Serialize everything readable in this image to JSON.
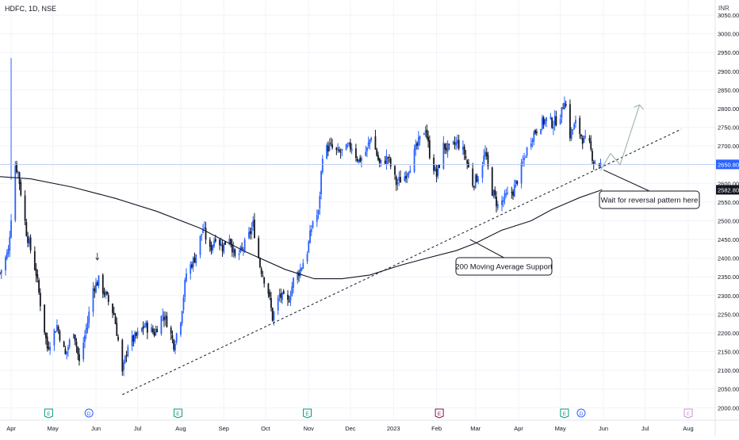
{
  "header": {
    "title": "HDFC, 1D, NSE",
    "currency": "INR"
  },
  "chart_data": {
    "type": "candlestick",
    "symbol": "HDFC",
    "interval": "1D",
    "exchange": "NSE",
    "currency": "INR",
    "ylim": [
      1990,
      3065
    ],
    "y_ticks": [
      2000,
      2050,
      2100,
      2150,
      2200,
      2250,
      2300,
      2350,
      2400,
      2450,
      2500,
      2550,
      2600,
      2650,
      2700,
      2750,
      2800,
      2850,
      2900,
      2950,
      3000,
      3050
    ],
    "y_tick_labels": [
      "2000.00",
      "2050.00",
      "2100.00",
      "2150.00",
      "2200.00",
      "2250.00",
      "2300.00",
      "2350.00",
      "2400.00",
      "2450.00",
      "2500.00",
      "2550.00",
      "2600.00",
      "2650.00",
      "2700.00",
      "2750.00",
      "2800.00",
      "2850.00",
      "2900.00",
      "2950.00",
      "3000.00",
      "3050.00"
    ],
    "x_labels": [
      {
        "label": "Apr",
        "date": "2022-04-01"
      },
      {
        "label": "May",
        "date": "2022-05-01"
      },
      {
        "label": "Jun",
        "date": "2022-06-01"
      },
      {
        "label": "Jul",
        "date": "2022-07-01"
      },
      {
        "label": "Aug",
        "date": "2022-08-01"
      },
      {
        "label": "Sep",
        "date": "2022-09-01"
      },
      {
        "label": "Oct",
        "date": "2022-10-01"
      },
      {
        "label": "Nov",
        "date": "2022-11-01"
      },
      {
        "label": "Dec",
        "date": "2022-12-01"
      },
      {
        "label": "2023",
        "date": "2023-01-01"
      },
      {
        "label": "Feb",
        "date": "2023-02-01"
      },
      {
        "label": "Mar",
        "date": "2023-03-01"
      },
      {
        "label": "Apr",
        "date": "2023-04-01"
      },
      {
        "label": "May",
        "date": "2023-05-01"
      },
      {
        "label": "Jun",
        "date": "2023-06-01"
      },
      {
        "label": "Jul",
        "date": "2023-07-01"
      },
      {
        "label": "Aug",
        "date": "2023-08-01"
      }
    ],
    "last_price": {
      "value": 2650.8,
      "label": "2650.80",
      "color": "#2962ff"
    },
    "moving_average": {
      "name": "200 Moving Average",
      "current_value": 2582.8,
      "label": "2582.80",
      "color": "#131722"
    },
    "price_path": [
      [
        "2022-03-24",
        2360
      ],
      [
        "2022-03-30",
        2420
      ],
      [
        "2022-04-04",
        2650
      ],
      [
        "2022-04-06",
        2630
      ],
      [
        "2022-04-12",
        2470
      ],
      [
        "2022-04-19",
        2360
      ],
      [
        "2022-04-22",
        2280
      ],
      [
        "2022-04-27",
        2160
      ],
      [
        "2022-05-04",
        2220
      ],
      [
        "2022-05-10",
        2140
      ],
      [
        "2022-05-16",
        2210
      ],
      [
        "2022-05-20",
        2120
      ],
      [
        "2022-05-26",
        2230
      ],
      [
        "2022-05-30",
        2320
      ],
      [
        "2022-06-03",
        2340
      ],
      [
        "2022-06-08",
        2300
      ],
      [
        "2022-06-14",
        2250
      ],
      [
        "2022-06-17",
        2180
      ],
      [
        "2022-06-20",
        2090
      ],
      [
        "2022-06-24",
        2170
      ],
      [
        "2022-06-30",
        2190
      ],
      [
        "2022-07-06",
        2220
      ],
      [
        "2022-07-13",
        2200
      ],
      [
        "2022-07-19",
        2250
      ],
      [
        "2022-07-22",
        2230
      ],
      [
        "2022-07-27",
        2170
      ],
      [
        "2022-08-01",
        2240
      ],
      [
        "2022-08-05",
        2360
      ],
      [
        "2022-08-11",
        2400
      ],
      [
        "2022-08-17",
        2480
      ],
      [
        "2022-08-22",
        2420
      ],
      [
        "2022-08-26",
        2460
      ],
      [
        "2022-08-31",
        2430
      ],
      [
        "2022-09-05",
        2460
      ],
      [
        "2022-09-09",
        2400
      ],
      [
        "2022-09-14",
        2420
      ],
      [
        "2022-09-19",
        2460
      ],
      [
        "2022-09-22",
        2490
      ],
      [
        "2022-09-27",
        2380
      ],
      [
        "2022-10-03",
        2310
      ],
      [
        "2022-10-06",
        2240
      ],
      [
        "2022-10-11",
        2300
      ],
      [
        "2022-10-17",
        2280
      ],
      [
        "2022-10-21",
        2340
      ],
      [
        "2022-10-26",
        2370
      ],
      [
        "2022-10-31",
        2420
      ],
      [
        "2022-11-04",
        2500
      ],
      [
        "2022-11-08",
        2520
      ],
      [
        "2022-11-11",
        2680
      ],
      [
        "2022-11-16",
        2700
      ],
      [
        "2022-11-22",
        2680
      ],
      [
        "2022-11-28",
        2690
      ],
      [
        "2022-12-02",
        2700
      ],
      [
        "2022-12-07",
        2660
      ],
      [
        "2022-12-13",
        2690
      ],
      [
        "2022-12-16",
        2730
      ],
      [
        "2022-12-22",
        2650
      ],
      [
        "2022-12-28",
        2670
      ],
      [
        "2023-01-03",
        2600
      ],
      [
        "2023-01-09",
        2620
      ],
      [
        "2023-01-13",
        2650
      ],
      [
        "2023-01-18",
        2700
      ],
      [
        "2023-01-24",
        2750
      ],
      [
        "2023-01-27",
        2680
      ],
      [
        "2023-02-01",
        2620
      ],
      [
        "2023-02-06",
        2700
      ],
      [
        "2023-02-10",
        2690
      ],
      [
        "2023-02-16",
        2710
      ],
      [
        "2023-02-21",
        2680
      ],
      [
        "2023-02-27",
        2600
      ],
      [
        "2023-03-03",
        2620
      ],
      [
        "2023-03-08",
        2680
      ],
      [
        "2023-03-13",
        2580
      ],
      [
        "2023-03-17",
        2540
      ],
      [
        "2023-03-22",
        2560
      ],
      [
        "2023-03-28",
        2580
      ],
      [
        "2023-04-03",
        2640
      ],
      [
        "2023-04-06",
        2680
      ],
      [
        "2023-04-11",
        2730
      ],
      [
        "2023-04-17",
        2760
      ],
      [
        "2023-04-21",
        2770
      ],
      [
        "2023-04-26",
        2760
      ],
      [
        "2023-05-02",
        2790
      ],
      [
        "2023-05-04",
        2830
      ],
      [
        "2023-05-08",
        2730
      ],
      [
        "2023-05-12",
        2760
      ],
      [
        "2023-05-17",
        2720
      ],
      [
        "2023-05-22",
        2700
      ],
      [
        "2023-05-25",
        2660
      ],
      [
        "2023-05-30",
        2650
      ]
    ],
    "ma_path": [
      [
        "2022-03-24",
        2618
      ],
      [
        "2022-04-15",
        2612
      ],
      [
        "2022-05-15",
        2590
      ],
      [
        "2022-06-15",
        2560
      ],
      [
        "2022-07-15",
        2525
      ],
      [
        "2022-08-15",
        2480
      ],
      [
        "2022-09-15",
        2420
      ],
      [
        "2022-10-15",
        2370
      ],
      [
        "2022-11-05",
        2345
      ],
      [
        "2022-11-25",
        2345
      ],
      [
        "2022-12-15",
        2355
      ],
      [
        "2023-01-05",
        2380
      ],
      [
        "2023-01-25",
        2400
      ],
      [
        "2023-02-15",
        2420
      ],
      [
        "2023-03-01",
        2440
      ],
      [
        "2023-03-20",
        2475
      ],
      [
        "2023-04-10",
        2500
      ],
      [
        "2023-04-25",
        2530
      ],
      [
        "2023-05-15",
        2562
      ],
      [
        "2023-05-31",
        2582.8
      ]
    ],
    "trendline": {
      "from": [
        "2022-06-20",
        2035
      ],
      "to": [
        "2023-07-27",
        2745
      ],
      "style": "dashed"
    },
    "projection": {
      "points": [
        [
          "2023-05-30",
          2635
        ],
        [
          "2023-06-06",
          2680
        ],
        [
          "2023-06-13",
          2650
        ],
        [
          "2023-06-27",
          2810
        ]
      ],
      "color": "#a5b8b0"
    },
    "spike": {
      "date": "2022-04-01",
      "high": 2935,
      "low": 2610
    },
    "down_marker": {
      "date": "2022-06-02",
      "value": 2395
    },
    "event_markers": [
      {
        "date": "2022-04-28",
        "letter": "E",
        "kind": "earnings",
        "color": "#089981"
      },
      {
        "date": "2022-05-27",
        "letter": "D",
        "kind": "dividend",
        "color": "#2962ff"
      },
      {
        "date": "2022-07-30",
        "letter": "E",
        "kind": "earnings",
        "color": "#089981"
      },
      {
        "date": "2022-10-31",
        "letter": "E",
        "kind": "earnings",
        "color": "#089981"
      },
      {
        "date": "2023-02-03",
        "letter": "E",
        "kind": "earnings",
        "color": "#880e4f"
      },
      {
        "date": "2023-05-04",
        "letter": "E",
        "kind": "earnings",
        "color": "#089981"
      },
      {
        "date": "2023-05-16",
        "letter": "D",
        "kind": "dividend",
        "color": "#2962ff"
      },
      {
        "date": "2023-08-01",
        "letter": "E",
        "kind": "upcoming",
        "color": "#ce93d8"
      }
    ],
    "annotations": [
      {
        "text": "Wait for reversal pattern here",
        "points_to": [
          "2023-06-01",
          2636
        ]
      },
      {
        "text": "200 Moving Average Support",
        "points_to": [
          "2023-02-25",
          2450
        ]
      }
    ],
    "colors": {
      "up": "#2962ff",
      "down": "#131722",
      "grid": "#f0f3fa",
      "axis_text": "#131722"
    },
    "grid": true
  }
}
